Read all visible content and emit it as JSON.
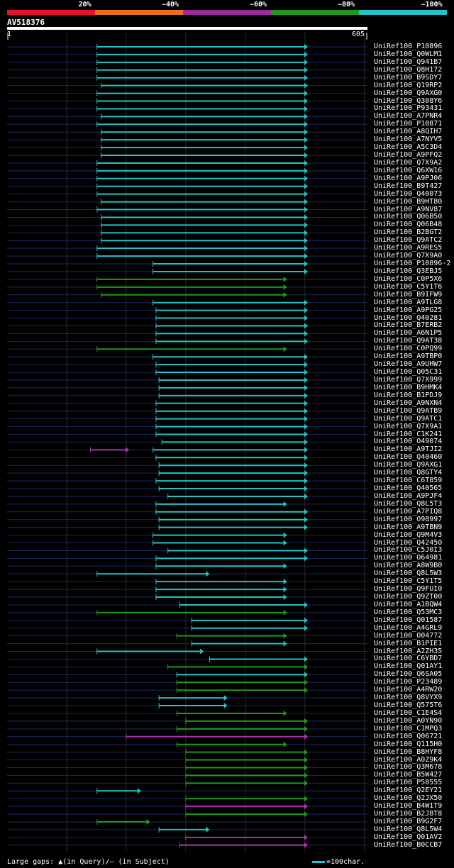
{
  "scale": {
    "segments": [
      {
        "label": "20%",
        "color": "#e8102a"
      },
      {
        "label": "~40%",
        "color": "#e8701a"
      },
      {
        "label": "~60%",
        "color": "#9c2a9c"
      },
      {
        "label": "~80%",
        "color": "#1e9a1e"
      },
      {
        "label": "~100%",
        "color": "#1fc4c8"
      }
    ]
  },
  "query": {
    "id": "AV518376",
    "start": "1",
    "end": "605"
  },
  "colors": {
    "cyan": "#1fc4c8",
    "green": "#1e9a1e",
    "purple": "#b030b0",
    "navy": "#1a2a66",
    "grid": "#2a2a2a"
  },
  "hits": [
    {
      "id": "UniRef100_P10896",
      "s": 151,
      "e": 505,
      "c": "cyan"
    },
    {
      "id": "UniRef100_Q0WLM1",
      "s": 151,
      "e": 505,
      "c": "cyan"
    },
    {
      "id": "UniRef100_Q941B7",
      "s": 151,
      "e": 505,
      "c": "cyan"
    },
    {
      "id": "UniRef100_Q8H172",
      "s": 151,
      "e": 505,
      "c": "cyan"
    },
    {
      "id": "UniRef100_B9SDY7",
      "s": 151,
      "e": 505,
      "c": "cyan"
    },
    {
      "id": "UniRef100_Q19RP2",
      "s": 158,
      "e": 505,
      "c": "cyan"
    },
    {
      "id": "UniRef100_Q9AXG0",
      "s": 151,
      "e": 505,
      "c": "cyan"
    },
    {
      "id": "UniRef100_Q308Y6",
      "s": 151,
      "e": 505,
      "c": "cyan"
    },
    {
      "id": "UniRef100_P93431",
      "s": 151,
      "e": 505,
      "c": "cyan"
    },
    {
      "id": "UniRef100_A7PNR4",
      "s": 158,
      "e": 505,
      "c": "cyan"
    },
    {
      "id": "UniRef100_P10871",
      "s": 151,
      "e": 505,
      "c": "cyan"
    },
    {
      "id": "UniRef100_A8QIH7",
      "s": 158,
      "e": 505,
      "c": "cyan"
    },
    {
      "id": "UniRef100_A7NYV5",
      "s": 158,
      "e": 505,
      "c": "cyan"
    },
    {
      "id": "UniRef100_A5C3D4",
      "s": 158,
      "e": 505,
      "c": "cyan"
    },
    {
      "id": "UniRef100_A9PFQ2",
      "s": 158,
      "e": 505,
      "c": "cyan"
    },
    {
      "id": "UniRef100_Q7X9A2",
      "s": 151,
      "e": 505,
      "c": "cyan"
    },
    {
      "id": "UniRef100_Q6XW16",
      "s": 151,
      "e": 505,
      "c": "cyan"
    },
    {
      "id": "UniRef100_A9PJ06",
      "s": 151,
      "e": 505,
      "c": "cyan"
    },
    {
      "id": "UniRef100_B9T427",
      "s": 151,
      "e": 505,
      "c": "cyan"
    },
    {
      "id": "UniRef100_Q40073",
      "s": 151,
      "e": 505,
      "c": "cyan"
    },
    {
      "id": "UniRef100_B9HT80",
      "s": 158,
      "e": 505,
      "c": "cyan"
    },
    {
      "id": "UniRef100_A9NV87",
      "s": 151,
      "e": 505,
      "c": "cyan"
    },
    {
      "id": "UniRef100_Q06B50",
      "s": 158,
      "e": 505,
      "c": "cyan"
    },
    {
      "id": "UniRef100_Q06B48",
      "s": 158,
      "e": 505,
      "c": "cyan"
    },
    {
      "id": "UniRef100_B2BGT2",
      "s": 158,
      "e": 505,
      "c": "cyan"
    },
    {
      "id": "UniRef100_Q9ATC2",
      "s": 158,
      "e": 505,
      "c": "cyan"
    },
    {
      "id": "UniRef100_A9RES5",
      "s": 151,
      "e": 505,
      "c": "cyan"
    },
    {
      "id": "UniRef100_Q7X9A0",
      "s": 151,
      "e": 505,
      "c": "cyan"
    },
    {
      "id": "UniRef100_P10896-2",
      "s": 245,
      "e": 505,
      "c": "cyan"
    },
    {
      "id": "UniRef100_Q3EBJ5",
      "s": 245,
      "e": 505,
      "c": "cyan"
    },
    {
      "id": "UniRef100_C0P5X6",
      "s": 151,
      "e": 470,
      "c": "green"
    },
    {
      "id": "UniRef100_C5Y1T6",
      "s": 151,
      "e": 470,
      "c": "green"
    },
    {
      "id": "UniRef100_B9IFW9",
      "s": 158,
      "e": 470,
      "c": "green"
    },
    {
      "id": "UniRef100_A9TLG8",
      "s": 245,
      "e": 505,
      "c": "cyan"
    },
    {
      "id": "UniRef100_A9PG25",
      "s": 250,
      "e": 505,
      "c": "cyan"
    },
    {
      "id": "UniRef100_Q40281",
      "s": 250,
      "e": 505,
      "c": "cyan"
    },
    {
      "id": "UniRef100_B7ERB2",
      "s": 250,
      "e": 505,
      "c": "cyan"
    },
    {
      "id": "UniRef100_A6N1P5",
      "s": 250,
      "e": 505,
      "c": "cyan"
    },
    {
      "id": "UniRef100_Q9AT38",
      "s": 250,
      "e": 505,
      "c": "cyan"
    },
    {
      "id": "UniRef100_C0PQ99",
      "s": 151,
      "e": 470,
      "c": "green"
    },
    {
      "id": "UniRef100_A9TBP0",
      "s": 245,
      "e": 505,
      "c": "cyan"
    },
    {
      "id": "UniRef100_A9UHW7",
      "s": 250,
      "e": 505,
      "c": "cyan"
    },
    {
      "id": "UniRef100_Q05C31",
      "s": 250,
      "e": 505,
      "c": "cyan"
    },
    {
      "id": "UniRef100_Q7X999",
      "s": 255,
      "e": 505,
      "c": "cyan"
    },
    {
      "id": "UniRef100_B9HMK4",
      "s": 255,
      "e": 505,
      "c": "cyan"
    },
    {
      "id": "UniRef100_B1PDJ9",
      "s": 255,
      "e": 505,
      "c": "cyan"
    },
    {
      "id": "UniRef100_A9NXN4",
      "s": 250,
      "e": 505,
      "c": "cyan"
    },
    {
      "id": "UniRef100_Q9ATB9",
      "s": 250,
      "e": 505,
      "c": "cyan"
    },
    {
      "id": "UniRef100_Q9ATC1",
      "s": 250,
      "e": 505,
      "c": "cyan"
    },
    {
      "id": "UniRef100_Q7X9A1",
      "s": 250,
      "e": 505,
      "c": "cyan"
    },
    {
      "id": "UniRef100_C1K241",
      "s": 250,
      "e": 505,
      "c": "cyan"
    },
    {
      "id": "UniRef100_O49074",
      "s": 260,
      "e": 505,
      "c": "cyan"
    },
    {
      "id": "UniRef100_A9TJI2",
      "s": 245,
      "e": 505,
      "c": "cyan",
      "extra": {
        "s": 140,
        "e": 205,
        "c": "purple"
      }
    },
    {
      "id": "UniRef100_Q40460",
      "s": 250,
      "e": 505,
      "c": "cyan"
    },
    {
      "id": "UniRef100_Q9AXG1",
      "s": 255,
      "e": 505,
      "c": "cyan"
    },
    {
      "id": "UniRef100_Q8GTY4",
      "s": 255,
      "e": 505,
      "c": "cyan"
    },
    {
      "id": "UniRef100_C6T859",
      "s": 250,
      "e": 505,
      "c": "cyan"
    },
    {
      "id": "UniRef100_Q40565",
      "s": 255,
      "e": 505,
      "c": "cyan"
    },
    {
      "id": "UniRef100_A9PJF4",
      "s": 270,
      "e": 505,
      "c": "cyan"
    },
    {
      "id": "UniRef100_Q8L5T3",
      "s": 250,
      "e": 470,
      "c": "cyan"
    },
    {
      "id": "UniRef100_A7PIQ8",
      "s": 250,
      "e": 505,
      "c": "cyan"
    },
    {
      "id": "UniRef100_O98997",
      "s": 255,
      "e": 505,
      "c": "cyan"
    },
    {
      "id": "UniRef100_A9TBN9",
      "s": 255,
      "e": 505,
      "c": "cyan"
    },
    {
      "id": "UniRef100_Q9M4V3",
      "s": 245,
      "e": 470,
      "c": "cyan"
    },
    {
      "id": "UniRef100_Q42450",
      "s": 245,
      "e": 470,
      "c": "cyan"
    },
    {
      "id": "UniRef100_C5J0I3",
      "s": 270,
      "e": 505,
      "c": "cyan"
    },
    {
      "id": "UniRef100_O64981",
      "s": 250,
      "e": 505,
      "c": "cyan"
    },
    {
      "id": "UniRef100_A8W9B0",
      "s": 250,
      "e": 470,
      "c": "cyan"
    },
    {
      "id": "UniRef100_Q8L5W3",
      "s": 151,
      "e": 340,
      "c": "cyan"
    },
    {
      "id": "UniRef100_C5Y1T5",
      "s": 250,
      "e": 470,
      "c": "cyan"
    },
    {
      "id": "UniRef100_Q9FUI0",
      "s": 250,
      "e": 470,
      "c": "cyan"
    },
    {
      "id": "UniRef100_Q9ZT00",
      "s": 250,
      "e": 470,
      "c": "cyan"
    },
    {
      "id": "UniRef100_A1BQW4",
      "s": 290,
      "e": 505,
      "c": "cyan"
    },
    {
      "id": "UniRef100_Q53MC3",
      "s": 151,
      "e": 470,
      "c": "green"
    },
    {
      "id": "UniRef100_Q01587",
      "s": 310,
      "e": 505,
      "c": "cyan"
    },
    {
      "id": "UniRef100_A4GRL9",
      "s": 310,
      "e": 505,
      "c": "cyan"
    },
    {
      "id": "UniRef100_O04772",
      "s": 285,
      "e": 470,
      "c": "green"
    },
    {
      "id": "UniRef100_B1PIE1",
      "s": 310,
      "e": 470,
      "c": "cyan"
    },
    {
      "id": "UniRef100_A2ZH35",
      "s": 151,
      "e": 330,
      "c": "cyan"
    },
    {
      "id": "UniRef100_C6YBD7",
      "s": 340,
      "e": 505,
      "c": "cyan"
    },
    {
      "id": "UniRef100_Q01AY1",
      "s": 270,
      "e": 505,
      "c": "green"
    },
    {
      "id": "UniRef100_Q6SA05",
      "s": 285,
      "e": 505,
      "c": "cyan"
    },
    {
      "id": "UniRef100_P23489",
      "s": 285,
      "e": 505,
      "c": "green"
    },
    {
      "id": "UniRef100_A4RW20",
      "s": 285,
      "e": 505,
      "c": "green"
    },
    {
      "id": "UniRef100_Q8VYX9",
      "s": 255,
      "e": 370,
      "c": "cyan"
    },
    {
      "id": "UniRef100_Q575T6",
      "s": 255,
      "e": 370,
      "c": "cyan"
    },
    {
      "id": "UniRef100_C1E4S4",
      "s": 285,
      "e": 470,
      "c": "green"
    },
    {
      "id": "UniRef100_A0YN90",
      "s": 300,
      "e": 505,
      "c": "green"
    },
    {
      "id": "UniRef100_C1MPQ3",
      "s": 285,
      "e": 505,
      "c": "green"
    },
    {
      "id": "UniRef100_Q06721",
      "s": 200,
      "e": 505,
      "c": "purple"
    },
    {
      "id": "UniRef100_Q115H0",
      "s": 285,
      "e": 470,
      "c": "green"
    },
    {
      "id": "UniRef100_B8HYF8",
      "s": 300,
      "e": 505,
      "c": "green"
    },
    {
      "id": "UniRef100_A0Z9K4",
      "s": 300,
      "e": 505,
      "c": "green"
    },
    {
      "id": "UniRef100_Q3M678",
      "s": 300,
      "e": 505,
      "c": "green"
    },
    {
      "id": "UniRef100_B5W427",
      "s": 300,
      "e": 505,
      "c": "green"
    },
    {
      "id": "UniRef100_P58555",
      "s": 300,
      "e": 505,
      "c": "green"
    },
    {
      "id": "UniRef100_Q2EY21",
      "s": 151,
      "e": 225,
      "c": "cyan"
    },
    {
      "id": "UniRef100_Q2JX50",
      "s": 300,
      "e": 505,
      "c": "green"
    },
    {
      "id": "UniRef100_B4W1T9",
      "s": 300,
      "e": 505,
      "c": "purple"
    },
    {
      "id": "UniRef100_B2J8T8",
      "s": 300,
      "e": 505,
      "c": "green"
    },
    {
      "id": "UniRef100_B9G2F7",
      "s": 151,
      "e": 240,
      "c": "green"
    },
    {
      "id": "UniRef100_Q8L5W4",
      "s": 255,
      "e": 340,
      "c": "cyan"
    },
    {
      "id": "UniRef100_Q01AV2",
      "s": 300,
      "e": 505,
      "c": "purple"
    },
    {
      "id": "UniRef100_B0CCB7",
      "s": 290,
      "e": 505,
      "c": "purple"
    }
  ],
  "footer": {
    "text": "Large gaps: ▲(in Query)/– (in Subject)"
  },
  "legend": {
    "text": "=100char."
  }
}
